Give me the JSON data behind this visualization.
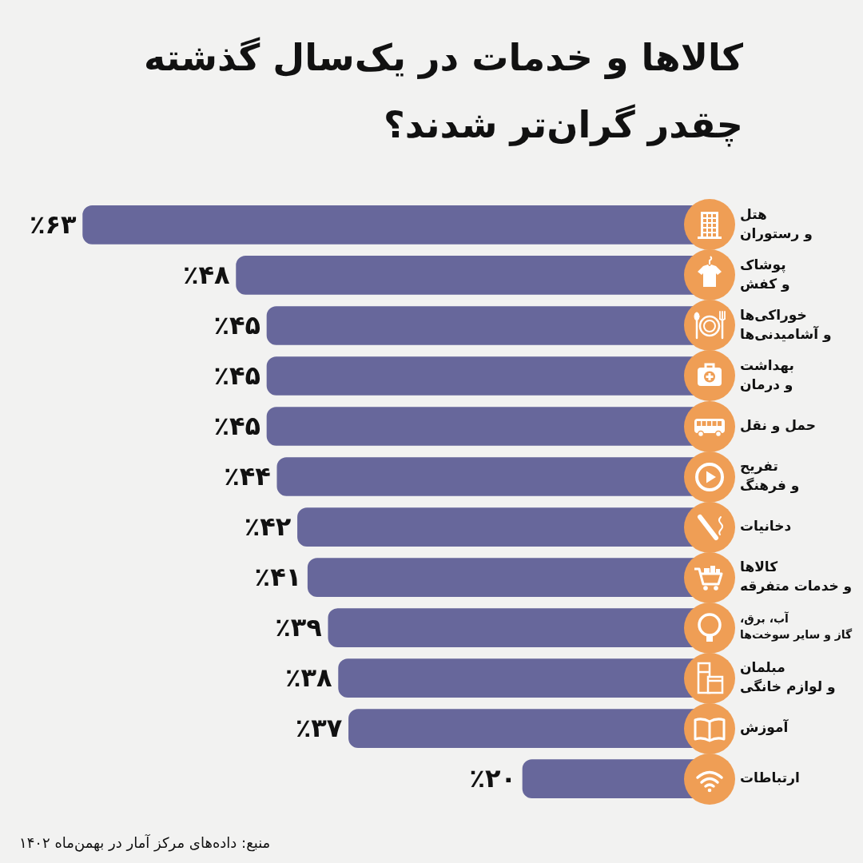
{
  "chart_data": {
    "type": "bar",
    "orientation": "horizontal",
    "title": "کالاها و خدمات در یک‌سال گذشته چقدر گران‌تر شدند؟",
    "categories": [
      "هتل\nو رستوران",
      "پوشاک\nو کفش",
      "خوراکی‌ها\nو آشامیدنی‌ها",
      "بهداشت\nو درمان",
      "حمل و نقل",
      "تفریح\nو فرهنگ",
      "دخانیات",
      "کالاها\nو خدمات متفرقه",
      "آب، برق،\nگاز و سایر سوخت‌ها",
      "مبلمان\nو لوازم خانگی",
      "آموزش",
      "ارتباطات"
    ],
    "values": [
      63,
      48,
      45,
      45,
      45,
      44,
      42,
      41,
      39,
      38,
      37,
      20
    ],
    "value_labels": [
      "٪۶۳",
      "٪۴۸",
      "٪۴۵",
      "٪۴۵",
      "٪۴۵",
      "٪۴۴",
      "٪۴۲",
      "٪۴۱",
      "٪۳۹",
      "٪۳۸",
      "٪۳۷",
      "٪۲۰"
    ],
    "color": "#67679b",
    "tick_labels": "y",
    "annotations": [
      "منبع: داده‌های مرکز آمار در بهمن‌ماه ۱۴۰۲"
    ]
  }
}
